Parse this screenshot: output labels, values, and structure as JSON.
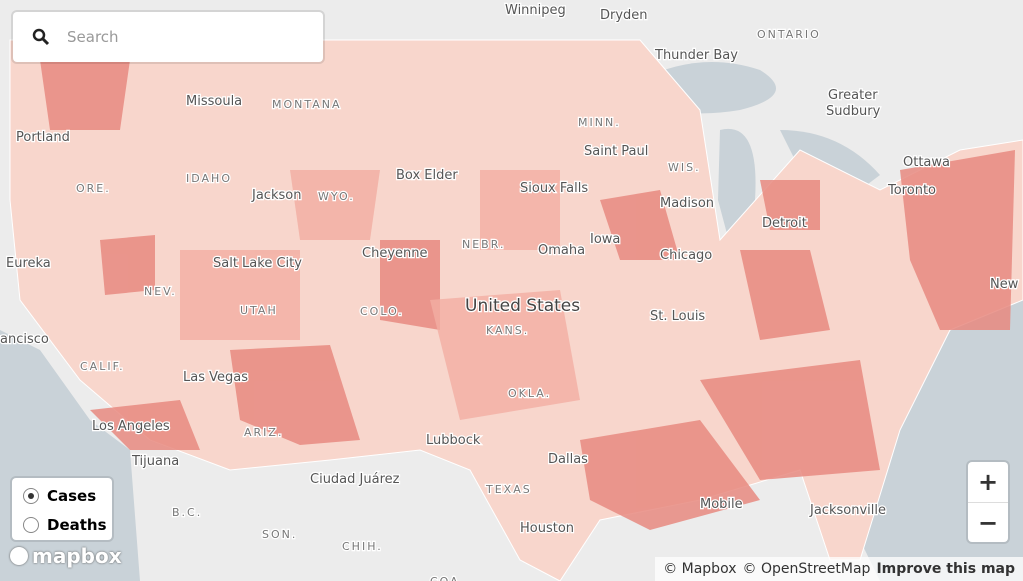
{
  "search": {
    "placeholder": "Search"
  },
  "map_labels": [
    "Winnipeg",
    "Dryden",
    "ONTARIO",
    "Thunder Bay",
    "Greater",
    "Sudbury",
    "Ottawa",
    "Toronto",
    "New",
    "Missoula",
    "MONTANA",
    "Portland",
    "ORE.",
    "IDAHO",
    "Jackson",
    "WYO.",
    "Box Elder",
    "Salt Lake City",
    "Cheyenne",
    "NEV.",
    "UTAH",
    "COLO.",
    "NEBR.",
    "Omaha",
    "Sioux Falls",
    "MINN.",
    "Saint Paul",
    "WIS.",
    "Madison",
    "Chicago",
    "Detroit",
    "United States",
    "KANS.",
    "St. Louis",
    "Las Vegas",
    "CALIF.",
    "Los Angeles",
    "Tijuana",
    "ARIZ.",
    "Lubbock",
    "Ciudad Juárez",
    "OKLA.",
    "Dallas",
    "TEXAS",
    "Houston",
    "Mobile",
    "Jacksonville",
    "B.C.",
    "SON.",
    "CHIH.",
    "COA.",
    "ancisco",
    "Eureka",
    "Iowa"
  ],
  "layer_toggle": {
    "options": [
      "Cases",
      "Deaths"
    ],
    "selected": "Cases"
  },
  "zoom": {
    "in": "+",
    "out": "−"
  },
  "attribution": {
    "mapbox": "© Mapbox",
    "osm": "© OpenStreetMap",
    "improve": "Improve this map"
  },
  "logo": "mapbox"
}
